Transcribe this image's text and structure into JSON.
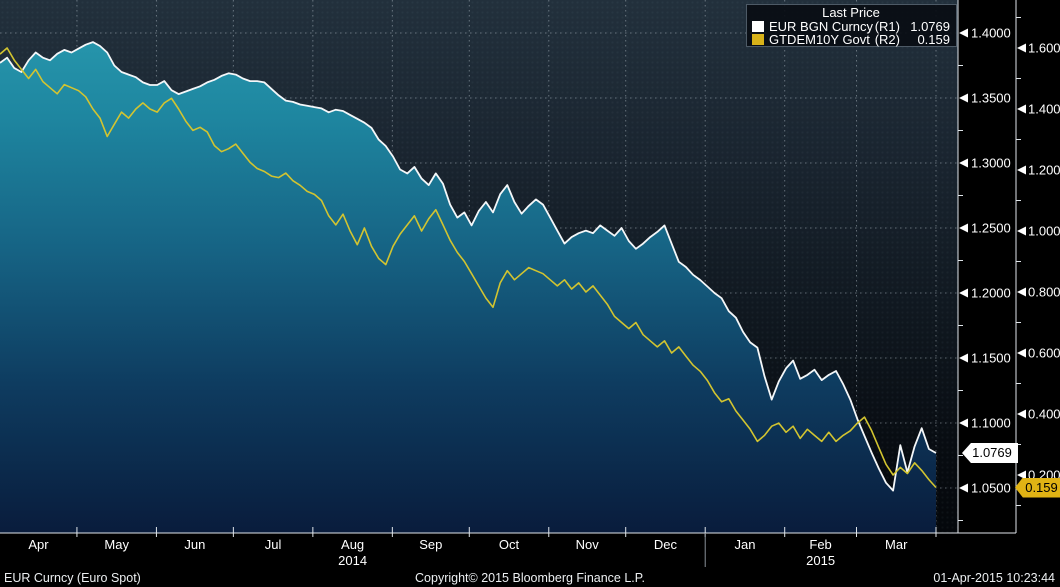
{
  "legend": {
    "title": "Last Price",
    "series": [
      {
        "name": "EUR BGN Curncy",
        "axis_tag": "(R1)",
        "value": "1.0769",
        "swatch": "#ffffff"
      },
      {
        "name": "GTDEM10Y Govt",
        "axis_tag": "(R2)",
        "value": "0.159",
        "swatch": "#d8b219"
      }
    ]
  },
  "axes": {
    "r1": {
      "side": "right-inner",
      "ticks": [
        {
          "label": "1.4000",
          "value": 1.4
        },
        {
          "label": "1.3500",
          "value": 1.35
        },
        {
          "label": "1.3000",
          "value": 1.3
        },
        {
          "label": "1.2500",
          "value": 1.25
        },
        {
          "label": "1.2000",
          "value": 1.2
        },
        {
          "label": "1.1500",
          "value": 1.15
        },
        {
          "label": "1.1000",
          "value": 1.1
        },
        {
          "label": "1.0500",
          "value": 1.05
        }
      ],
      "last": {
        "label": "1.0769",
        "value": 1.0769,
        "color": "#ffffff"
      }
    },
    "r2": {
      "side": "right-outer",
      "ticks": [
        {
          "label": "1.600",
          "value": 1.6
        },
        {
          "label": "1.400",
          "value": 1.4
        },
        {
          "label": "1.200",
          "value": 1.2
        },
        {
          "label": "1.000",
          "value": 1.0
        },
        {
          "label": "0.800",
          "value": 0.8
        },
        {
          "label": "0.600",
          "value": 0.6
        },
        {
          "label": "0.400",
          "value": 0.4
        },
        {
          "label": "0.200",
          "value": 0.2
        }
      ],
      "last": {
        "label": "0.159",
        "value": 0.159,
        "color": "#e0b314"
      }
    },
    "x": {
      "month_labels": [
        "Apr",
        "May",
        "Jun",
        "Jul",
        "Aug",
        "Sep",
        "Oct",
        "Nov",
        "Dec",
        "Jan",
        "Feb",
        "Mar"
      ],
      "boundaries_days": [
        0,
        30,
        61,
        91,
        122,
        153,
        183,
        214,
        244,
        275,
        306,
        334,
        365
      ],
      "year_labels": [
        {
          "label": "2014",
          "center_day": 137.5
        },
        {
          "label": "2015",
          "center_day": 320
        }
      ],
      "year_separator_day": 275
    }
  },
  "footer": {
    "left": "EUR Curncy (Euro Spot)",
    "center": "Copyright© 2015 Bloomberg Finance L.P.",
    "right": "01-Apr-2015 10:23:44"
  },
  "colors": {
    "line_eur": "#f4f7f9",
    "line_dem": "#d2c430",
    "grid": "rgba(205,216,226,0.42)",
    "axis_line": "#dfe5ea",
    "tick_text": "#ffffff",
    "area_top": "#2a9db1",
    "area_upper": "#1e86a0",
    "area_mid": "#166384",
    "area_lower": "#0e3c60",
    "area_bottom": "#091c3c"
  },
  "chart_data": {
    "type": "line",
    "title": "",
    "x_axis": {
      "start": "Apr 2014",
      "end": "Apr 2015",
      "unit": "days",
      "total_days": 365
    },
    "legend_position": "top-right",
    "grid": true,
    "series": [
      {
        "name": "EUR BGN Curncy",
        "axis": "R1",
        "range": [
          1.05,
          1.4
        ],
        "last": 1.0769,
        "values": [
          1.377,
          1.381,
          1.373,
          1.37,
          1.379,
          1.385,
          1.381,
          1.379,
          1.384,
          1.387,
          1.385,
          1.388,
          1.391,
          1.393,
          1.39,
          1.385,
          1.375,
          1.37,
          1.368,
          1.366,
          1.362,
          1.36,
          1.36,
          1.363,
          1.356,
          1.353,
          1.355,
          1.357,
          1.359,
          1.362,
          1.364,
          1.367,
          1.369,
          1.368,
          1.365,
          1.363,
          1.363,
          1.362,
          1.357,
          1.352,
          1.348,
          1.347,
          1.345,
          1.344,
          1.343,
          1.342,
          1.339,
          1.341,
          1.34,
          1.337,
          1.334,
          1.331,
          1.327,
          1.318,
          1.313,
          1.305,
          1.295,
          1.292,
          1.297,
          1.288,
          1.283,
          1.292,
          1.284,
          1.268,
          1.258,
          1.262,
          1.252,
          1.263,
          1.27,
          1.262,
          1.276,
          1.283,
          1.27,
          1.261,
          1.267,
          1.272,
          1.268,
          1.258,
          1.248,
          1.238,
          1.243,
          1.246,
          1.248,
          1.246,
          1.252,
          1.248,
          1.244,
          1.25,
          1.24,
          1.234,
          1.238,
          1.243,
          1.247,
          1.252,
          1.238,
          1.224,
          1.22,
          1.214,
          1.21,
          1.205,
          1.2,
          1.196,
          1.186,
          1.181,
          1.17,
          1.162,
          1.158,
          1.136,
          1.118,
          1.132,
          1.142,
          1.148,
          1.134,
          1.137,
          1.141,
          1.133,
          1.137,
          1.14,
          1.13,
          1.118,
          1.103,
          1.09,
          1.077,
          1.065,
          1.054,
          1.048,
          1.083,
          1.062,
          1.082,
          1.096,
          1.08,
          1.0769
        ]
      },
      {
        "name": "GTDEM10Y Govt",
        "axis": "R2",
        "range": [
          0.2,
          1.6
        ],
        "last": 0.159,
        "values": [
          1.58,
          1.6,
          1.56,
          1.53,
          1.5,
          1.53,
          1.49,
          1.47,
          1.45,
          1.48,
          1.47,
          1.46,
          1.44,
          1.4,
          1.37,
          1.31,
          1.35,
          1.39,
          1.37,
          1.4,
          1.42,
          1.4,
          1.39,
          1.42,
          1.435,
          1.4,
          1.36,
          1.33,
          1.34,
          1.325,
          1.28,
          1.26,
          1.27,
          1.285,
          1.255,
          1.225,
          1.205,
          1.195,
          1.18,
          1.175,
          1.19,
          1.165,
          1.15,
          1.13,
          1.12,
          1.1,
          1.05,
          1.02,
          1.055,
          1.0,
          0.955,
          1.01,
          0.95,
          0.91,
          0.89,
          0.95,
          0.99,
          1.02,
          1.05,
          1.0,
          1.04,
          1.07,
          1.02,
          0.97,
          0.93,
          0.9,
          0.86,
          0.82,
          0.78,
          0.75,
          0.83,
          0.87,
          0.84,
          0.86,
          0.88,
          0.87,
          0.86,
          0.84,
          0.82,
          0.84,
          0.81,
          0.83,
          0.8,
          0.82,
          0.79,
          0.76,
          0.72,
          0.7,
          0.68,
          0.7,
          0.66,
          0.64,
          0.62,
          0.64,
          0.6,
          0.62,
          0.59,
          0.56,
          0.54,
          0.51,
          0.47,
          0.44,
          0.45,
          0.41,
          0.38,
          0.35,
          0.31,
          0.33,
          0.36,
          0.37,
          0.34,
          0.36,
          0.32,
          0.35,
          0.33,
          0.31,
          0.34,
          0.31,
          0.33,
          0.345,
          0.37,
          0.39,
          0.345,
          0.29,
          0.235,
          0.2,
          0.225,
          0.205,
          0.24,
          0.215,
          0.185,
          0.159
        ]
      }
    ]
  }
}
